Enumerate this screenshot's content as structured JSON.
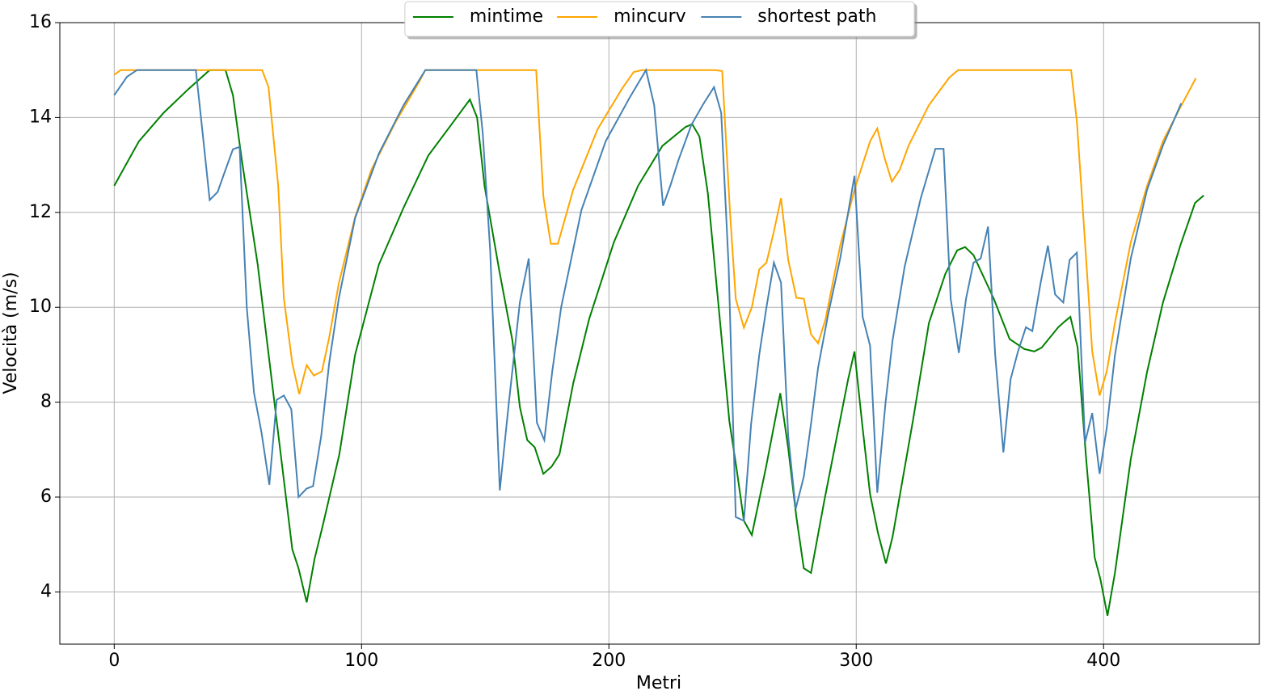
{
  "chart_data": {
    "type": "line",
    "x_label": "Metri",
    "y_label": "Velocità (m/s)",
    "xlim": [
      -22,
      463
    ],
    "ylim": [
      2.9,
      16
    ],
    "xticks": [
      0,
      100,
      200,
      300,
      400
    ],
    "yticks": [
      4,
      6,
      8,
      10,
      12,
      14,
      16
    ],
    "grid": true,
    "legend": "upper center",
    "series": [
      {
        "name": "mintime",
        "color": "#008000",
        "x": [
          0,
          10,
          20,
          30,
          38.6,
          45,
          48,
          51.6,
          58,
          66,
          72,
          74.5,
          77.8,
          81,
          84.3,
          91,
          97.4,
          107,
          117,
          127,
          137,
          143.8,
          146.7,
          149.7,
          155.6,
          161,
          164,
          167,
          170,
          173.5,
          176.8,
          180,
          185.6,
          192,
          202,
          211.8,
          221.6,
          231,
          233.7,
          236.6,
          240,
          244.4,
          248.7,
          251.6,
          254.6,
          257.8,
          263.4,
          269.3,
          272.5,
          275.8,
          278.8,
          281.7,
          287,
          296.7,
          299.3,
          302.6,
          305.6,
          308.8,
          312,
          314.7,
          322.9,
          329.4,
          336,
          340.8,
          344,
          347.4,
          355.6,
          362,
          368,
          372,
          375,
          381.7,
          384.3,
          386.6,
          389.5,
          393,
          396.4,
          398.7,
          401.6,
          404.6,
          411,
          417.6,
          424,
          431,
          437,
          440.5
        ],
        "values": [
          12.56,
          13.5,
          14.1,
          14.6,
          15.0,
          15.0,
          14.47,
          13.1,
          10.9,
          7.46,
          4.9,
          4.5,
          3.78,
          4.7,
          5.4,
          6.9,
          9.0,
          10.9,
          12.1,
          13.2,
          13.9,
          14.38,
          14.0,
          12.56,
          10.8,
          9.3,
          7.9,
          7.2,
          7.05,
          6.49,
          6.64,
          6.9,
          8.4,
          9.75,
          11.37,
          12.56,
          13.4,
          13.8,
          13.86,
          13.6,
          12.4,
          10.0,
          7.6,
          6.6,
          5.5,
          5.2,
          6.6,
          8.19,
          7.03,
          5.58,
          4.5,
          4.4,
          5.9,
          8.48,
          9.07,
          7.45,
          6.06,
          5.24,
          4.6,
          5.16,
          7.6,
          9.67,
          10.7,
          11.2,
          11.27,
          11.1,
          10.18,
          9.33,
          9.12,
          9.07,
          9.15,
          9.58,
          9.7,
          9.8,
          9.16,
          6.78,
          4.73,
          4.27,
          3.5,
          4.4,
          6.8,
          8.64,
          10.1,
          11.3,
          12.2,
          12.36
        ]
      },
      {
        "name": "mincurv",
        "color": "#ffa500",
        "x": [
          0,
          2.6,
          38.6,
          59.8,
          62.4,
          66.3,
          68.6,
          72,
          74.8,
          77.8,
          80.7,
          84,
          86.9,
          90.8,
          97.4,
          104,
          113.7,
          123.5,
          125.8,
          170.6,
          173.5,
          176.5,
          179.4,
          185.6,
          195.4,
          205.2,
          210,
          213.4,
          242.8,
          245.8,
          249,
          251.3,
          254.6,
          257.8,
          260.8,
          263.7,
          266.7,
          269.6,
          272.5,
          275.8,
          278.8,
          281.7,
          284.6,
          287.6,
          293.5,
          299.3,
          305.6,
          308.5,
          311.4,
          314.4,
          317.6,
          321.2,
          329.4,
          337.6,
          341.2,
          386.9,
          389.2,
          392.5,
          395.4,
          398.4,
          401.3,
          404.6,
          411,
          417.6,
          424,
          430.7,
          437.3
        ],
        "values": [
          14.9,
          15,
          15,
          15,
          14.64,
          12.56,
          10.18,
          8.82,
          8.17,
          8.78,
          8.56,
          8.65,
          9.36,
          10.5,
          11.9,
          12.9,
          13.9,
          14.77,
          15,
          15,
          12.34,
          11.34,
          11.34,
          12.48,
          13.75,
          14.6,
          14.96,
          15,
          15,
          14.98,
          11.97,
          10.18,
          9.57,
          10.0,
          10.8,
          10.94,
          11.6,
          12.3,
          11.0,
          10.2,
          10.18,
          9.43,
          9.24,
          9.75,
          11.3,
          12.48,
          13.5,
          13.77,
          13.16,
          12.65,
          12.9,
          13.41,
          14.26,
          14.84,
          15,
          15,
          13.92,
          11.37,
          9.07,
          8.14,
          8.65,
          9.67,
          11.37,
          12.56,
          13.5,
          14.18,
          14.83
        ]
      },
      {
        "name": "shortest path",
        "color": "#4682b4",
        "x": [
          0,
          5.2,
          9.2,
          33,
          35.6,
          38.6,
          41.8,
          45,
          48,
          50.7,
          53.6,
          56.5,
          59.5,
          62.7,
          65.7,
          68.6,
          71.6,
          74.5,
          77.8,
          80.4,
          83.7,
          86.9,
          90.8,
          97.4,
          107,
          117,
          125.8,
          146.4,
          149,
          152,
          155.9,
          159.5,
          164,
          167.6,
          170.9,
          173.9,
          177.1,
          180.7,
          188.9,
          198.7,
          208.5,
          215,
          218.3,
          221.9,
          224.8,
          228.1,
          233.3,
          237.9,
          242.5,
          245.4,
          248.4,
          251.3,
          254.6,
          257.5,
          260.8,
          263.7,
          266.7,
          269.6,
          272.5,
          275.5,
          278.8,
          281.7,
          284.6,
          288.6,
          293.5,
          299.3,
          302.6,
          305.6,
          308.5,
          311.8,
          314.7,
          319.6,
          326.1,
          332,
          335.3,
          338.2,
          341.5,
          344.4,
          347.4,
          350.3,
          353.3,
          356.2,
          359.5,
          362.4,
          365.4,
          368.6,
          371.2,
          374.5,
          377.5,
          380.4,
          383.7,
          386.3,
          389.2,
          392.5,
          395.4,
          398.4,
          401.3,
          404.6,
          411,
          417.6,
          424,
          431.4
        ],
        "values": [
          14.47,
          14.86,
          15,
          15,
          13.75,
          12.26,
          12.43,
          12.9,
          13.33,
          13.38,
          10.0,
          8.2,
          7.37,
          6.26,
          8.05,
          8.14,
          7.85,
          6.0,
          6.18,
          6.23,
          7.29,
          8.82,
          10.18,
          11.88,
          13.24,
          14.26,
          15,
          15,
          13.67,
          11.2,
          6.14,
          7.97,
          10.1,
          11.03,
          7.57,
          7.2,
          8.65,
          10.0,
          12.05,
          13.5,
          14.43,
          15,
          14.26,
          12.14,
          12.56,
          13.1,
          13.84,
          14.26,
          14.64,
          14.1,
          10.86,
          5.58,
          5.5,
          7.54,
          9.0,
          10.0,
          10.94,
          10.52,
          7.29,
          5.75,
          6.43,
          7.54,
          8.73,
          9.84,
          11.03,
          12.77,
          9.8,
          9.19,
          6.09,
          7.97,
          9.3,
          10.86,
          12.3,
          13.34,
          13.34,
          10.18,
          9.04,
          10.18,
          10.94,
          11.03,
          11.7,
          8.99,
          6.94,
          8.48,
          9.07,
          9.58,
          9.5,
          10.5,
          11.3,
          10.27,
          10.1,
          11.0,
          11.15,
          7.15,
          7.77,
          6.49,
          7.46,
          8.99,
          11.03,
          12.48,
          13.41,
          14.3
        ]
      }
    ]
  }
}
